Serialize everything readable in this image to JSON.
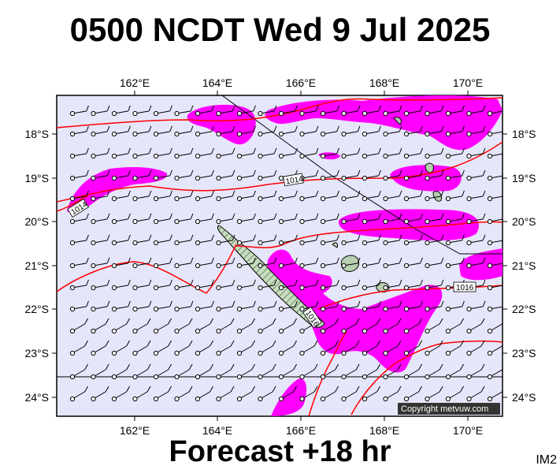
{
  "title": "0500 NCDT Wed 9 Jul 2025",
  "footer": "Forecast +18 hr",
  "product_code": "IM2",
  "credit": "Copyright metvuw.com",
  "map": {
    "lon_ticks": [
      "162°E",
      "164°E",
      "166°E",
      "168°E",
      "170°E"
    ],
    "lat_ticks": [
      "18°S",
      "19°S",
      "20°S",
      "21°S",
      "22°S",
      "23°S",
      "24°S"
    ],
    "isobar_labels": [
      "1014",
      "1014",
      "1016",
      "1016"
    ],
    "colors": {
      "ocean": "#e6e6fa",
      "rain": "#ff00ff",
      "isobar": "#ff0000",
      "land": "#b8d0b0"
    }
  }
}
